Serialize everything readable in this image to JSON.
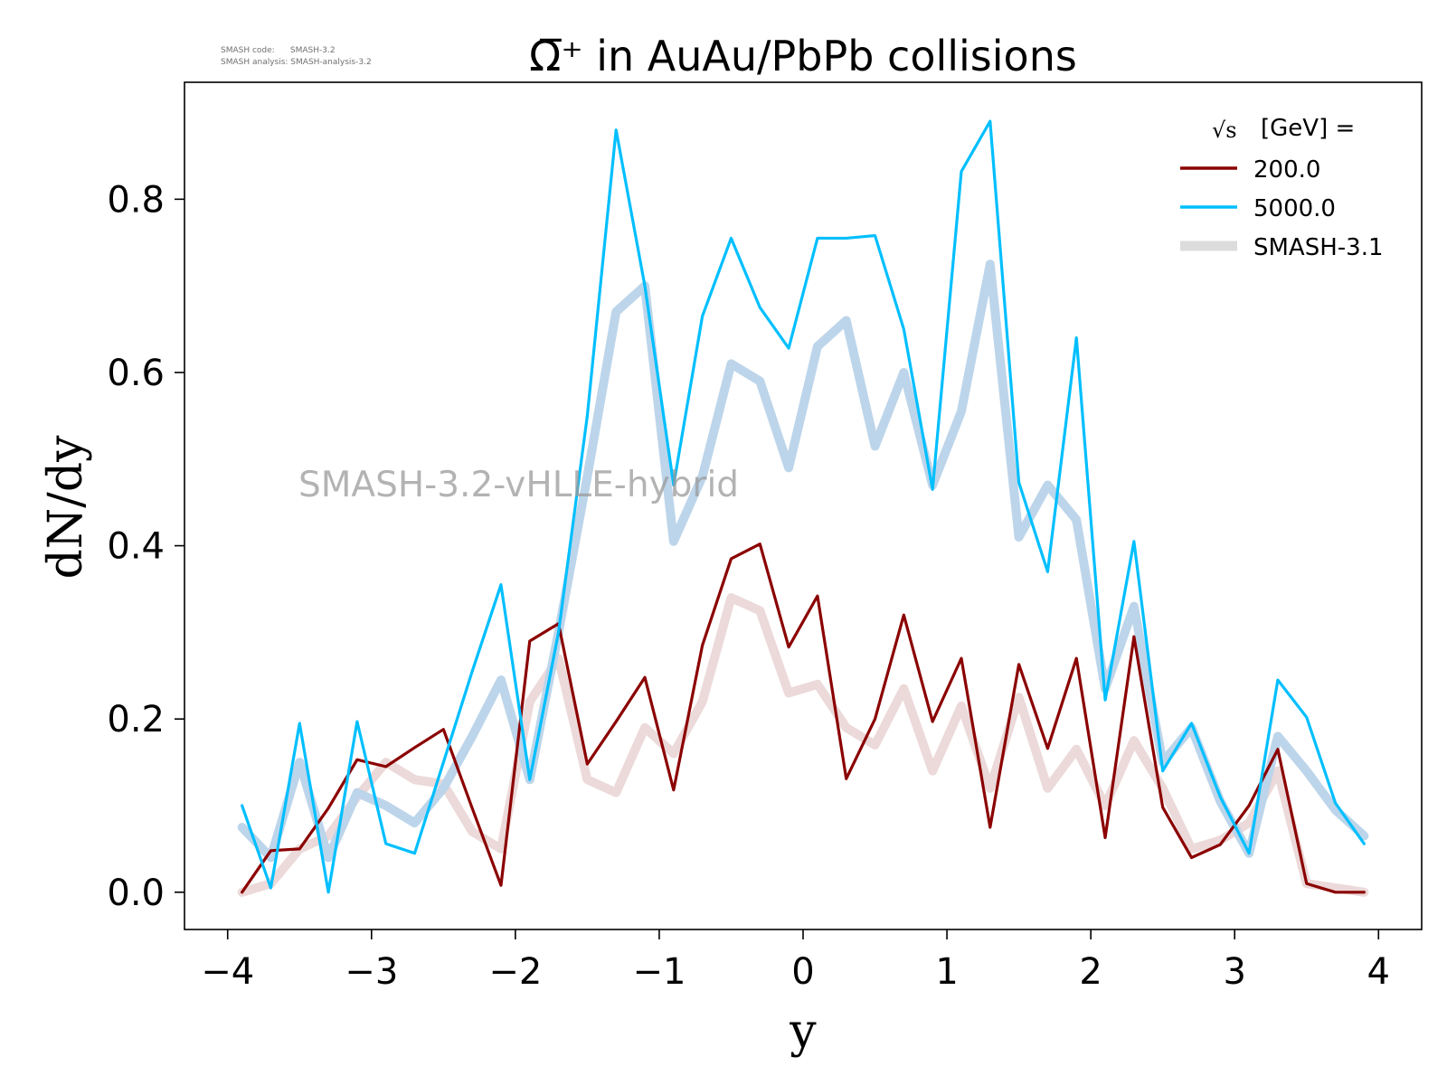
{
  "meta": {
    "code_line": "SMASH code:      SMASH-3.2",
    "analysis_line": "SMASH analysis: SMASH-analysis-3.2"
  },
  "watermark": "SMASH-3.2-vHLLE-hybrid",
  "chart_data": {
    "type": "line",
    "title": "Ω̅⁺ in AuAu/PbPb collisions",
    "xlabel": "y",
    "ylabel": "dN/dy",
    "xlim": [
      -4.3,
      4.3
    ],
    "ylim": [
      -0.043,
      0.935
    ],
    "x_ticks": [
      -4,
      -3,
      -2,
      -1,
      0,
      1,
      2,
      3,
      4
    ],
    "x_tick_labels": [
      "−4",
      "−3",
      "−2",
      "−1",
      "0",
      "1",
      "2",
      "3",
      "4"
    ],
    "y_ticks": [
      0.0,
      0.2,
      0.4,
      0.6,
      0.8
    ],
    "y_tick_labels": [
      "0.0",
      "0.2",
      "0.4",
      "0.6",
      "0.8"
    ],
    "grid": false,
    "legend": {
      "placement": "top-right",
      "title": "[GeV] =",
      "title_symbol": "√s",
      "entries": [
        "200.0",
        "5000.0",
        "SMASH-3.1"
      ]
    },
    "colors": {
      "s200": "#8b0000",
      "s5000": "#00bfff",
      "ref200": "#ecd9d9",
      "ref5000": "#bdd5ea",
      "legend_ref": "#dcdcdc"
    },
    "x": [
      -3.9,
      -3.7,
      -3.5,
      -3.3,
      -3.1,
      -2.9,
      -2.7,
      -2.5,
      -2.3,
      -2.1,
      -1.9,
      -1.7,
      -1.5,
      -1.3,
      -1.1,
      -0.9,
      -0.7,
      -0.5,
      -0.3,
      -0.1,
      0.1,
      0.3,
      0.5,
      0.7,
      0.9,
      1.1,
      1.3,
      1.5,
      1.7,
      1.9,
      2.1,
      2.3,
      2.5,
      2.7,
      2.9,
      3.1,
      3.3,
      3.5,
      3.7,
      3.9
    ],
    "series": [
      {
        "name": "SMASH-3.1",
        "values": [
          0.0,
          0.01,
          0.05,
          0.065,
          0.11,
          0.15,
          0.13,
          0.125,
          0.07,
          0.05,
          0.22,
          0.27,
          0.13,
          0.115,
          0.19,
          0.16,
          0.22,
          0.34,
          0.325,
          0.23,
          0.24,
          0.19,
          0.17,
          0.235,
          0.14,
          0.215,
          0.12,
          0.225,
          0.12,
          0.165,
          0.1,
          0.175,
          0.12,
          0.05,
          0.06,
          0.08,
          0.14,
          0.01,
          0.005,
          0.0
        ]
      },
      {
        "name": "SMASH-3.1",
        "values": [
          0.075,
          0.04,
          0.15,
          0.04,
          0.115,
          0.1,
          0.08,
          0.12,
          0.18,
          0.245,
          0.13,
          0.3,
          0.48,
          0.67,
          0.7,
          0.405,
          0.48,
          0.61,
          0.59,
          0.49,
          0.63,
          0.66,
          0.515,
          0.6,
          0.47,
          0.555,
          0.725,
          0.41,
          0.47,
          0.43,
          0.235,
          0.33,
          0.15,
          0.19,
          0.105,
          0.045,
          0.18,
          0.14,
          0.095,
          0.065
        ]
      },
      {
        "name": "200.0",
        "values": [
          0.0,
          0.048,
          0.05,
          0.097,
          0.153,
          0.145,
          0.167,
          0.188,
          0.097,
          0.008,
          0.29,
          0.31,
          0.148,
          0.197,
          0.248,
          0.118,
          0.285,
          0.385,
          0.402,
          0.283,
          0.342,
          0.131,
          0.2,
          0.32,
          0.197,
          0.27,
          0.075,
          0.263,
          0.166,
          0.27,
          0.063,
          0.295,
          0.098,
          0.04,
          0.055,
          0.1,
          0.165,
          0.01,
          0.0,
          0.0
        ]
      },
      {
        "name": "5000.0",
        "values": [
          0.1,
          0.005,
          0.195,
          0.0,
          0.197,
          0.056,
          0.045,
          0.15,
          0.255,
          0.355,
          0.13,
          0.3,
          0.55,
          0.88,
          0.7,
          0.47,
          0.665,
          0.755,
          0.675,
          0.628,
          0.755,
          0.755,
          0.758,
          0.65,
          0.465,
          0.832,
          0.89,
          0.473,
          0.37,
          0.64,
          0.222,
          0.405,
          0.14,
          0.195,
          0.11,
          0.045,
          0.245,
          0.202,
          0.103,
          0.056
        ]
      }
    ]
  }
}
